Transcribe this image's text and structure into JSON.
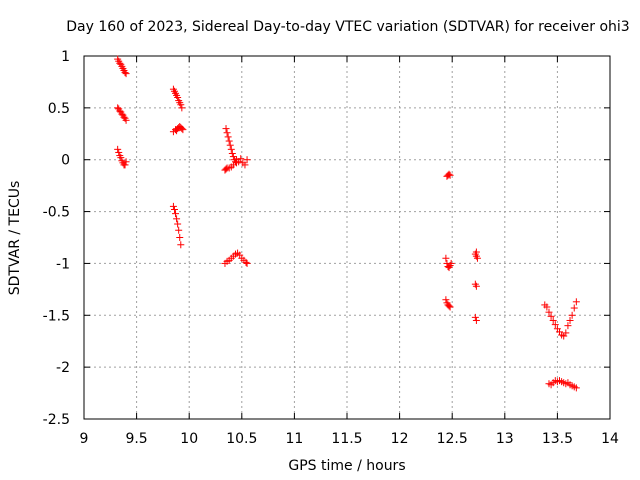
{
  "chart_data": {
    "type": "scatter",
    "title": "Day 160 of 2023, Sidereal Day-to-day VTEC variation (SDTVAR) for receiver ohi3",
    "xlabel": "GPS time / hours",
    "ylabel": "SDTVAR / TECUs",
    "xlim": [
      9,
      14
    ],
    "ylim": [
      -2.5,
      1
    ],
    "xticks": [
      "9",
      "9.5",
      "10",
      "10.5",
      "11",
      "11.5",
      "12",
      "12.5",
      "13",
      "13.5",
      "14"
    ],
    "yticks": [
      "1",
      "0.5",
      "0",
      "-0.5",
      "-1",
      "-1.5",
      "-2",
      "-2.5"
    ],
    "grid": true,
    "marker": "plus",
    "series": [
      {
        "name": "SDTVAR",
        "color": "#ff0000",
        "x": [
          9.32,
          9.33,
          9.34,
          9.35,
          9.36,
          9.37,
          9.38,
          9.39,
          9.4,
          9.32,
          9.33,
          9.34,
          9.35,
          9.36,
          9.37,
          9.38,
          9.39,
          9.4,
          9.32,
          9.33,
          9.34,
          9.35,
          9.36,
          9.37,
          9.38,
          9.39,
          9.4,
          9.85,
          9.86,
          9.87,
          9.88,
          9.89,
          9.9,
          9.91,
          9.92,
          9.93,
          9.85,
          9.87,
          9.88,
          9.89,
          9.9,
          9.91,
          9.92,
          9.93,
          9.94,
          9.85,
          9.86,
          9.87,
          9.88,
          9.89,
          9.9,
          9.91,
          9.92,
          10.35,
          10.36,
          10.37,
          10.38,
          10.39,
          10.4,
          10.41,
          10.42,
          10.43,
          10.44,
          10.45,
          10.34,
          10.35,
          10.36,
          10.38,
          10.4,
          10.42,
          10.45,
          10.47,
          10.49,
          10.51,
          10.53,
          10.55,
          10.34,
          10.36,
          10.38,
          10.4,
          10.42,
          10.44,
          10.46,
          10.48,
          10.5,
          10.52,
          10.54,
          10.55,
          12.45,
          12.46,
          12.47,
          12.48,
          12.44,
          12.45,
          12.46,
          12.47,
          12.48,
          12.49,
          12.44,
          12.45,
          12.46,
          12.47,
          12.48,
          12.72,
          12.73,
          12.73,
          12.74,
          12.72,
          12.73,
          12.72,
          12.73,
          13.42,
          13.44,
          13.46,
          13.48,
          13.5,
          13.52,
          13.54,
          13.56,
          13.58,
          13.6,
          13.62,
          13.64,
          13.66,
          13.68,
          13.38,
          13.4,
          13.42,
          13.44,
          13.46,
          13.48,
          13.5,
          13.52,
          13.54,
          13.56,
          13.58,
          13.6,
          13.62,
          13.64,
          13.66,
          13.68
        ],
        "y": [
          0.97,
          0.95,
          0.93,
          0.92,
          0.9,
          0.88,
          0.86,
          0.84,
          0.83,
          0.5,
          0.49,
          0.47,
          0.46,
          0.44,
          0.43,
          0.41,
          0.4,
          0.38,
          0.1,
          0.07,
          0.04,
          0.02,
          -0.01,
          -0.03,
          -0.05,
          -0.05,
          -0.02,
          0.68,
          0.66,
          0.64,
          0.62,
          0.6,
          0.57,
          0.55,
          0.53,
          0.5,
          0.27,
          0.29,
          0.28,
          0.3,
          0.31,
          0.32,
          0.31,
          0.3,
          0.29,
          -0.45,
          -0.48,
          -0.52,
          -0.57,
          -0.62,
          -0.68,
          -0.75,
          -0.82,
          0.3,
          0.26,
          0.22,
          0.18,
          0.14,
          0.1,
          0.06,
          0.03,
          0.0,
          -0.02,
          -0.03,
          -0.1,
          -0.09,
          -0.08,
          -0.08,
          -0.07,
          -0.05,
          0.0,
          -0.02,
          0.01,
          -0.03,
          -0.05,
          0.0,
          -1.0,
          -0.98,
          -0.97,
          -0.95,
          -0.93,
          -0.91,
          -0.9,
          -0.92,
          -0.95,
          -0.97,
          -0.99,
          -1.0,
          -0.16,
          -0.15,
          -0.14,
          -0.15,
          -0.95,
          -1.0,
          -1.03,
          -1.04,
          -1.02,
          -1.0,
          -1.35,
          -1.38,
          -1.4,
          -1.41,
          -1.42,
          -0.91,
          -0.89,
          -0.93,
          -0.95,
          -1.2,
          -1.22,
          -1.52,
          -1.55,
          -2.16,
          -2.17,
          -2.15,
          -2.13,
          -2.14,
          -2.13,
          -2.14,
          -2.15,
          -2.16,
          -2.15,
          -2.17,
          -2.18,
          -2.19,
          -2.2,
          -1.4,
          -1.42,
          -1.47,
          -1.51,
          -1.55,
          -1.59,
          -1.63,
          -1.66,
          -1.69,
          -1.7,
          -1.67,
          -1.6,
          -1.55,
          -1.5,
          -1.43,
          -1.37
        ]
      }
    ]
  }
}
